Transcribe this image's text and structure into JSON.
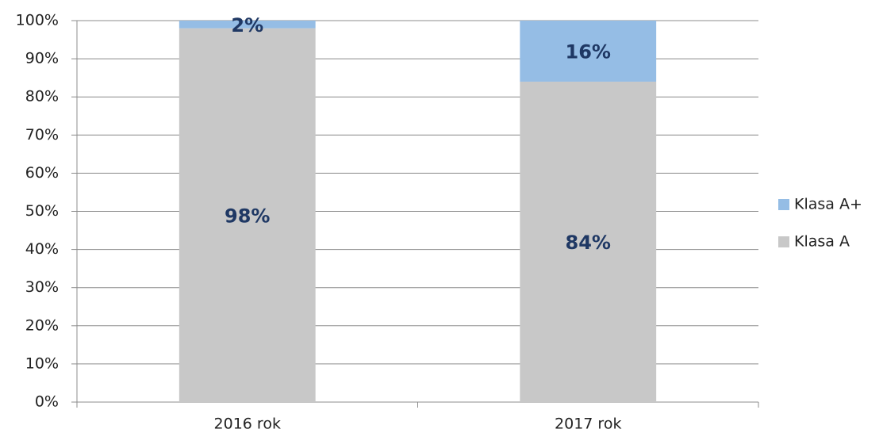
{
  "chart_data": {
    "type": "stacked_bar",
    "categories": [
      "2016 rok",
      "2017 rok"
    ],
    "series": [
      {
        "name": "Klasa A",
        "color": "#c8c8c8",
        "values": [
          98,
          84
        ],
        "value_labels": [
          "98%",
          "84%"
        ]
      },
      {
        "name": "Klasa A+",
        "color": "#95bde5",
        "values": [
          2,
          16
        ],
        "value_labels": [
          "2%",
          "16%"
        ]
      }
    ],
    "ylim": [
      0,
      100
    ],
    "yticks": [
      {
        "value": 0,
        "label": "0%"
      },
      {
        "value": 10,
        "label": "10%"
      },
      {
        "value": 20,
        "label": "20%"
      },
      {
        "value": 30,
        "label": "30%"
      },
      {
        "value": 40,
        "label": "40%"
      },
      {
        "value": 50,
        "label": "50%"
      },
      {
        "value": 60,
        "label": "60%"
      },
      {
        "value": 70,
        "label": "70%"
      },
      {
        "value": 80,
        "label": "80%"
      },
      {
        "value": 90,
        "label": "90%"
      },
      {
        "value": 100,
        "label": "100%"
      }
    ],
    "grid": true,
    "legend": "right"
  }
}
